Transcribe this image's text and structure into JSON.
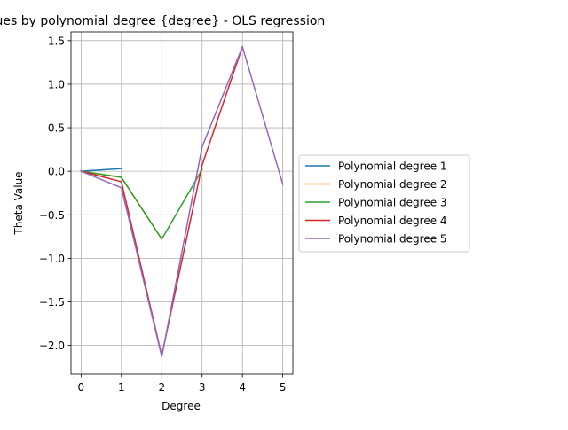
{
  "chart_data": {
    "type": "line",
    "title": "values by polynomial degree {degree} - OLS regression",
    "xlabel": "Degree",
    "ylabel": "Theta Value",
    "xlim": [
      -0.25,
      5.25
    ],
    "ylim": [
      -2.33,
      1.6
    ],
    "xticks": [
      0,
      1,
      2,
      3,
      4,
      5
    ],
    "yticks": [
      -2.0,
      -1.5,
      -1.0,
      -0.5,
      0.0,
      0.5,
      1.0,
      1.5
    ],
    "xtick_labels": [
      "0",
      "1",
      "2",
      "3",
      "4",
      "5"
    ],
    "ytick_labels": [
      "−2.0",
      "−1.5",
      "−1.0",
      "−0.5",
      "0.0",
      "0.5",
      "1.0",
      "1.5"
    ],
    "grid": true,
    "legend_position": "outside-right",
    "series": [
      {
        "name": "Polynomial degree 1",
        "color": "#1f77b4",
        "x": [
          0,
          1
        ],
        "values": [
          0.0,
          0.03
        ]
      },
      {
        "name": "Polynomial degree 2",
        "color": "#ff7f0e",
        "x": [
          0,
          1,
          2
        ],
        "values": [
          0.0,
          -0.07,
          -0.78
        ]
      },
      {
        "name": "Polynomial degree 3",
        "color": "#2ca02c",
        "x": [
          0,
          1,
          2,
          3
        ],
        "values": [
          0.0,
          -0.07,
          -0.78,
          0.02
        ]
      },
      {
        "name": "Polynomial degree 4",
        "color": "#d62728",
        "x": [
          0,
          1,
          2,
          3,
          4
        ],
        "values": [
          0.0,
          -0.12,
          -2.12,
          0.07,
          1.43
        ]
      },
      {
        "name": "Polynomial degree 5",
        "color": "#9467bd",
        "x": [
          0,
          1,
          2,
          3,
          4,
          5
        ],
        "values": [
          0.0,
          -0.19,
          -2.13,
          0.28,
          1.43,
          -0.15
        ]
      }
    ]
  }
}
